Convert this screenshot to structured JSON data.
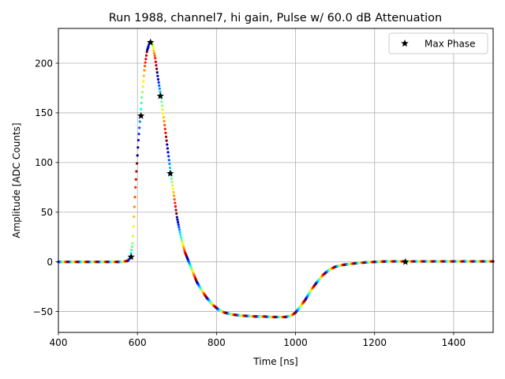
{
  "chart_data": {
    "type": "scatter",
    "title": "Run 1988, channel7, hi gain, Pulse w/ 60.0 dB Attenuation",
    "xlabel": "Time [ns]",
    "ylabel": "Amplitude [ADC Counts]",
    "xlim": [
      400,
      1500
    ],
    "ylim": [
      -71,
      235
    ],
    "xticks": [
      400,
      600,
      800,
      1000,
      1200,
      1400
    ],
    "yticks": [
      -50,
      0,
      50,
      100,
      150,
      200
    ],
    "ytick_labels": [
      "−50",
      "0",
      "50",
      "100",
      "150",
      "200"
    ],
    "grid": true,
    "legend": {
      "position": "top-right",
      "entries": [
        {
          "label": "Max Phase",
          "marker": "star",
          "color": "#000000"
        }
      ]
    },
    "colormap": "jet",
    "pulse_profile": {
      "description": "samples overlaid from many phases; points colored by phase",
      "x": [
        400,
        560,
        575,
        582,
        588,
        595,
        602,
        610,
        618,
        624,
        630,
        634,
        638,
        645,
        652,
        660,
        668,
        676,
        684,
        692,
        700,
        710,
        720,
        730,
        740,
        750,
        760,
        775,
        790,
        805,
        820,
        840,
        860,
        880,
        900,
        920,
        940,
        960,
        975,
        990,
        1000,
        1010,
        1025,
        1040,
        1055,
        1070,
        1085,
        1100,
        1120,
        1140,
        1160,
        1180,
        1200,
        1230,
        1260,
        1300,
        1350,
        1400,
        1450,
        1500
      ],
      "y": [
        0,
        0,
        1,
        4,
        20,
        75,
        120,
        160,
        195,
        212,
        220,
        221,
        219,
        205,
        185,
        165,
        140,
        115,
        90,
        68,
        45,
        25,
        10,
        0,
        -10,
        -20,
        -27,
        -36,
        -43,
        -48,
        -51,
        -53,
        -54,
        -54.5,
        -55,
        -55,
        -55.5,
        -55.5,
        -55.5,
        -54,
        -51,
        -46,
        -38,
        -28,
        -20,
        -13,
        -8,
        -5,
        -3,
        -2,
        -1,
        -0.5,
        0,
        0.5,
        0.5,
        0.5,
        0.5,
        0.5,
        0.5,
        0.5
      ]
    },
    "series": [
      {
        "name": "Max Phase",
        "marker": "star",
        "x": [
          584,
          609,
          633,
          658,
          683,
          1278
        ],
        "y": [
          5,
          147,
          221,
          167,
          89,
          0
        ]
      }
    ]
  }
}
